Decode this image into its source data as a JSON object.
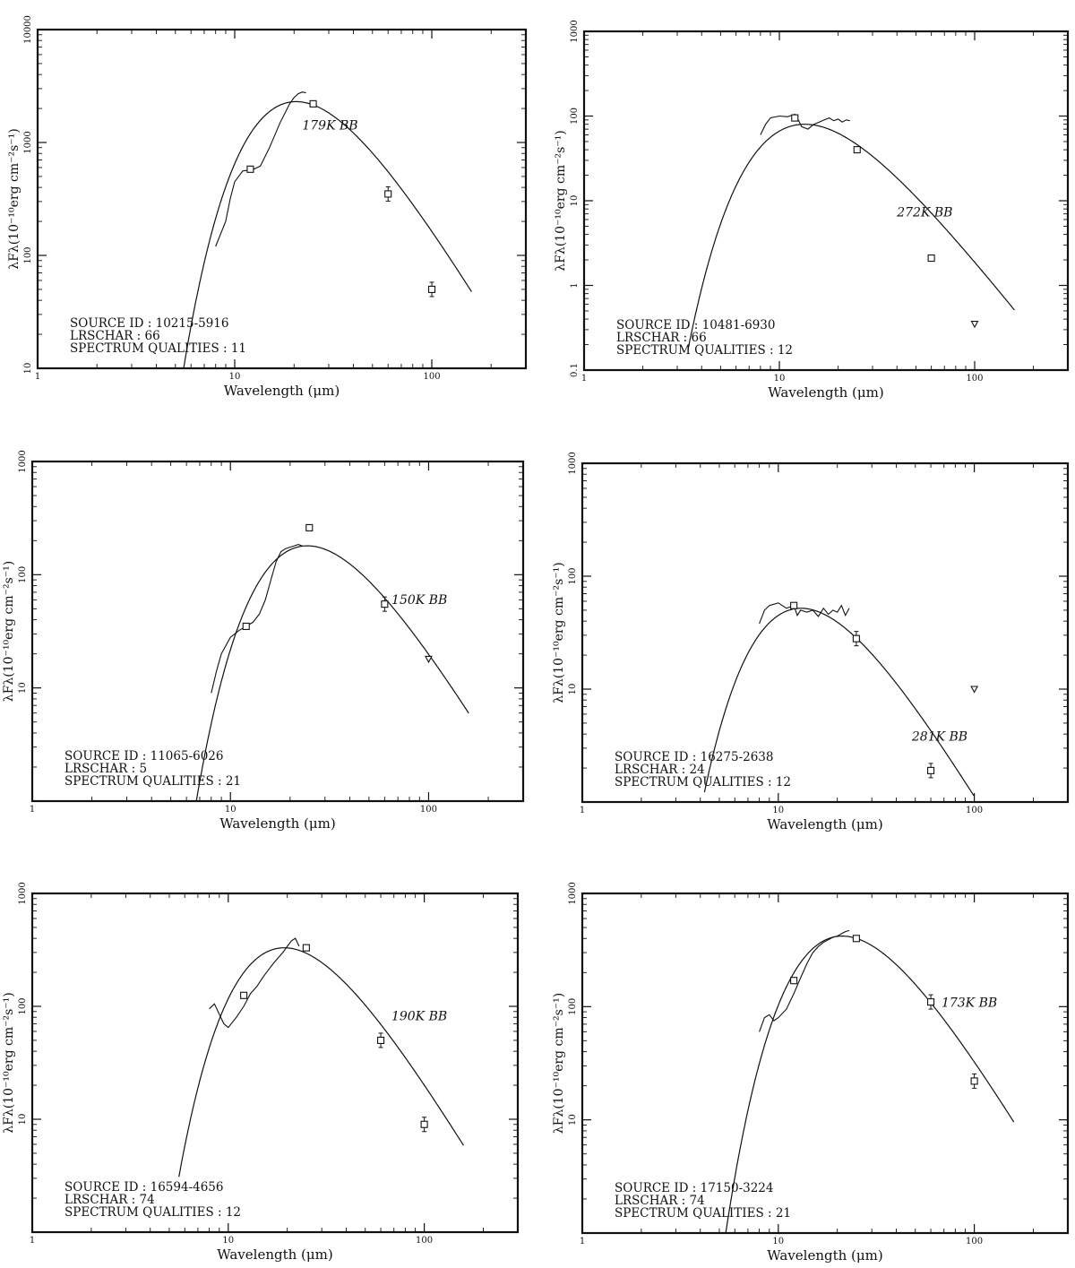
{
  "colors": {
    "ink": "#111111",
    "background": "#ffffff"
  },
  "chart_data": [
    {
      "type": "line",
      "xscale": "log",
      "yscale": "log",
      "xlim": [
        1,
        300
      ],
      "ylim": [
        10,
        10000
      ],
      "xticks": [
        "1",
        "10",
        "100"
      ],
      "yticks": [
        "10",
        "100",
        "1000",
        "10000"
      ],
      "xlabel": "Wavelength (μm)",
      "ylabel": "λFλ(10⁻¹⁰erg cm⁻²s⁻¹)",
      "info": [
        "SOURCE ID : 10215-5916",
        "LRSCHAR : 66",
        "SPECTRUM QUALITIES : 11"
      ],
      "bb_label": "179K BB",
      "bb_temp": 179,
      "bb_peak": 2300,
      "model_range": [
        5.4,
        160
      ],
      "label_at": [
        22,
        1300
      ],
      "spectrum": {
        "x": [
          8,
          9,
          9.5,
          10,
          11,
          12,
          12.5,
          13,
          13.5,
          15,
          17,
          19,
          20,
          21,
          22,
          23
        ],
        "y": [
          120,
          200,
          320,
          450,
          560,
          570,
          580,
          600,
          620,
          900,
          1500,
          2200,
          2500,
          2700,
          2800,
          2750
        ]
      },
      "points": [
        {
          "x": 12,
          "y": 580,
          "type": "square"
        },
        {
          "x": 25,
          "y": 2200,
          "type": "square"
        },
        {
          "x": 60,
          "y": 350,
          "type": "square",
          "err": true
        },
        {
          "x": 100,
          "y": 50,
          "type": "square",
          "err": true
        }
      ]
    },
    {
      "type": "line",
      "xscale": "log",
      "yscale": "log",
      "xlim": [
        1,
        300
      ],
      "ylim": [
        0.1,
        1000
      ],
      "xticks": [
        "1",
        "10",
        "100"
      ],
      "yticks": [
        "0.1",
        "1",
        "10",
        "100",
        "1000"
      ],
      "xlabel": "Wavelength (μm)",
      "ylabel": "λFλ(10⁻¹⁰erg cm⁻²s⁻¹)",
      "info": [
        "SOURCE ID : 10481-6930",
        "LRSCHAR : 66",
        "SPECTRUM QUALITIES : 12"
      ],
      "bb_label": "272K BB",
      "bb_temp": 272,
      "bb_peak": 80,
      "model_range": [
        3.4,
        160
      ],
      "label_at": [
        40,
        6.5
      ],
      "spectrum": {
        "x": [
          8,
          8.5,
          9,
          10,
          11,
          12,
          12.5,
          13,
          14,
          15,
          16,
          17,
          18,
          19,
          20,
          21,
          22,
          23
        ],
        "y": [
          60,
          80,
          95,
          100,
          98,
          105,
          90,
          75,
          70,
          80,
          85,
          90,
          95,
          88,
          92,
          85,
          90,
          88
        ]
      },
      "points": [
        {
          "x": 12,
          "y": 95,
          "type": "square"
        },
        {
          "x": 25,
          "y": 40,
          "type": "square"
        },
        {
          "x": 60,
          "y": 2.1,
          "type": "square"
        },
        {
          "x": 100,
          "y": 0.35,
          "type": "triangle"
        }
      ]
    },
    {
      "type": "line",
      "xscale": "log",
      "yscale": "log",
      "xlim": [
        1,
        300
      ],
      "ylim": [
        1,
        1000
      ],
      "xticks": [
        "1",
        "10",
        "100"
      ],
      "yticks": [
        "10",
        "100",
        "1000"
      ],
      "xlabel": "Wavelength (μm)",
      "ylabel": "λFλ(10⁻¹⁰erg cm⁻²s⁻¹)",
      "info": [
        "SOURCE ID : 11065-6026",
        "LRSCHAR : 5",
        "SPECTRUM QUALITIES : 21"
      ],
      "bb_label": "150K BB",
      "bb_temp": 150,
      "bb_peak": 180,
      "model_range": [
        6.6,
        160
      ],
      "label_at": [
        65,
        55
      ],
      "spectrum": {
        "x": [
          8,
          8.5,
          9,
          10,
          11,
          12,
          13,
          14,
          15,
          16,
          17,
          18,
          19,
          20,
          21,
          22,
          23
        ],
        "y": [
          9,
          14,
          20,
          28,
          32,
          35,
          38,
          45,
          60,
          90,
          130,
          160,
          170,
          175,
          180,
          185,
          180
        ]
      },
      "points": [
        {
          "x": 12,
          "y": 35,
          "type": "square"
        },
        {
          "x": 25,
          "y": 260,
          "type": "square"
        },
        {
          "x": 60,
          "y": 55,
          "type": "square",
          "err": true
        },
        {
          "x": 100,
          "y": 18,
          "type": "triangle"
        }
      ]
    },
    {
      "type": "line",
      "xscale": "log",
      "yscale": "log",
      "xlim": [
        1,
        300
      ],
      "ylim": [
        1,
        1000
      ],
      "xticks": [
        "1",
        "10",
        "100"
      ],
      "yticks": [
        "10",
        "100",
        "1000"
      ],
      "xlabel": "Wavelength (μm)",
      "ylabel": "λFλ(10⁻¹⁰erg cm⁻²s⁻¹)",
      "info": [
        "SOURCE ID : 16275-2638",
        "LRSCHAR : 24",
        "SPECTRUM QUALITIES : 12"
      ],
      "bb_label": "281K BB",
      "bb_temp": 281,
      "bb_peak": 52,
      "model_range": [
        4.2,
        100
      ],
      "label_at": [
        48,
        3.5
      ],
      "spectrum": {
        "x": [
          8,
          8.5,
          9,
          10,
          11,
          12,
          12.5,
          13,
          14,
          15,
          16,
          17,
          18,
          19,
          20,
          21,
          22,
          23
        ],
        "y": [
          38,
          50,
          55,
          58,
          52,
          55,
          45,
          50,
          48,
          50,
          44,
          52,
          46,
          50,
          48,
          55,
          45,
          52
        ]
      },
      "points": [
        {
          "x": 12,
          "y": 55,
          "type": "square"
        },
        {
          "x": 25,
          "y": 28,
          "type": "square",
          "err": true
        },
        {
          "x": 60,
          "y": 1.9,
          "type": "square",
          "err": true
        },
        {
          "x": 100,
          "y": 10,
          "type": "triangle"
        }
      ]
    },
    {
      "type": "line",
      "xscale": "log",
      "yscale": "log",
      "xlim": [
        1,
        300
      ],
      "ylim": [
        1,
        1000
      ],
      "xticks": [
        "1",
        "10",
        "100"
      ],
      "yticks": [
        "10",
        "100",
        "1000"
      ],
      "xlabel": "Wavelength (μm)",
      "ylabel": "λFλ(10⁻¹⁰erg cm⁻²s⁻¹)",
      "info": [
        "SOURCE ID : 16594-4656",
        "LRSCHAR : 74",
        "SPECTRUM QUALITIES : 12"
      ],
      "bb_label": "190K BB",
      "bb_temp": 190,
      "bb_peak": 330,
      "model_range": [
        5.6,
        160
      ],
      "label_at": [
        68,
        75
      ],
      "spectrum": {
        "x": [
          8,
          8.5,
          9,
          9.5,
          10,
          11,
          12,
          13,
          14,
          15,
          16,
          17,
          18,
          19,
          20,
          21,
          22,
          23
        ],
        "y": [
          95,
          105,
          85,
          70,
          65,
          80,
          100,
          130,
          150,
          180,
          210,
          240,
          270,
          300,
          340,
          380,
          400,
          340
        ]
      },
      "points": [
        {
          "x": 12,
          "y": 125,
          "type": "square"
        },
        {
          "x": 25,
          "y": 330,
          "type": "square"
        },
        {
          "x": 60,
          "y": 50,
          "type": "square",
          "err": true
        },
        {
          "x": 100,
          "y": 9,
          "type": "square",
          "err": true
        }
      ]
    },
    {
      "type": "line",
      "xscale": "log",
      "yscale": "log",
      "xlim": [
        1,
        300
      ],
      "ylim": [
        1,
        1000
      ],
      "xticks": [
        "1",
        "10",
        "100"
      ],
      "yticks": [
        "10",
        "100",
        "1000"
      ],
      "xlabel": "Wavelength (μm)",
      "ylabel": "λFλ(10⁻¹⁰erg cm⁻²s⁻¹)",
      "info": [
        "SOURCE ID : 17150-3224",
        "LRSCHAR : 74",
        "SPECTRUM QUALITIES : 21"
      ],
      "bb_label": "173K BB",
      "bb_temp": 173,
      "bb_peak": 420,
      "model_range": [
        5.4,
        160
      ],
      "label_at": [
        68,
        100
      ],
      "spectrum": {
        "x": [
          8,
          8.5,
          9,
          9.5,
          10,
          11,
          12,
          13,
          14,
          15,
          16,
          17,
          18,
          19,
          20,
          21,
          22,
          23
        ],
        "y": [
          60,
          80,
          85,
          75,
          80,
          95,
          130,
          180,
          240,
          300,
          340,
          370,
          390,
          410,
          420,
          440,
          460,
          470
        ]
      },
      "points": [
        {
          "x": 12,
          "y": 170,
          "type": "square"
        },
        {
          "x": 25,
          "y": 400,
          "type": "square"
        },
        {
          "x": 60,
          "y": 110,
          "type": "square",
          "err": true
        },
        {
          "x": 100,
          "y": 22,
          "type": "square",
          "err": true
        }
      ]
    }
  ]
}
